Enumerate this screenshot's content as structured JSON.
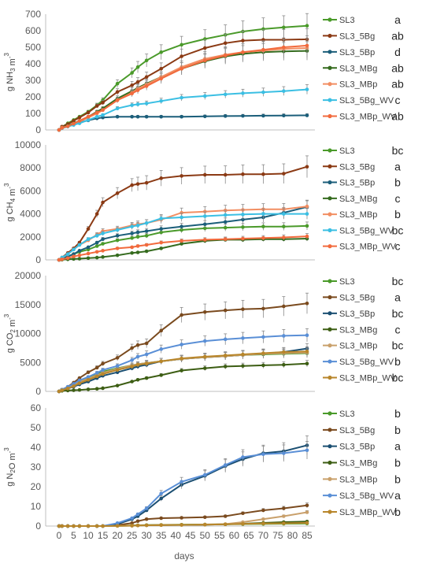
{
  "chart_data": [
    {
      "type": "line",
      "ylabel": "g NH₃ m⁻³",
      "ylim": [
        0,
        700
      ],
      "yticks": [
        0,
        100,
        200,
        300,
        400,
        500,
        600,
        700
      ],
      "x": [
        0,
        1,
        3,
        5,
        7,
        10,
        13,
        15,
        20,
        25,
        27,
        30,
        35,
        42,
        50,
        57,
        63,
        70,
        77,
        85
      ],
      "series": [
        {
          "name": "SL3",
          "sig": "a",
          "color": "#4a9a2a",
          "values": [
            0,
            18,
            40,
            60,
            80,
            110,
            150,
            180,
            280,
            345,
            380,
            420,
            470,
            515,
            550,
            575,
            595,
            610,
            620,
            630
          ]
        },
        {
          "name": "SL3_5Bg",
          "sig": "ab",
          "color": "#8b3a14",
          "values": [
            0,
            20,
            35,
            55,
            75,
            105,
            145,
            165,
            230,
            270,
            290,
            320,
            370,
            445,
            495,
            525,
            540,
            545,
            545,
            548
          ]
        },
        {
          "name": "SL3_5Bp",
          "sig": "d",
          "color": "#1b5e7a",
          "values": [
            0,
            12,
            25,
            35,
            45,
            58,
            70,
            75,
            80,
            80,
            80,
            80,
            80,
            80,
            82,
            84,
            85,
            86,
            87,
            88
          ]
        },
        {
          "name": "SL3_MBg",
          "sig": "ab",
          "color": "#356b1e",
          "values": [
            0,
            15,
            25,
            40,
            55,
            80,
            110,
            130,
            190,
            235,
            255,
            280,
            320,
            370,
            415,
            445,
            460,
            470,
            475,
            478
          ]
        },
        {
          "name": "SL3_MBp",
          "sig": "ab",
          "color": "#f28e62",
          "values": [
            0,
            14,
            22,
            35,
            50,
            75,
            100,
            120,
            180,
            225,
            250,
            275,
            320,
            380,
            430,
            455,
            470,
            480,
            490,
            495
          ]
        },
        {
          "name": "SL3_5Bg_WV",
          "sig": "c",
          "color": "#3bbfe3",
          "values": [
            0,
            10,
            20,
            30,
            40,
            60,
            80,
            90,
            130,
            150,
            155,
            160,
            175,
            195,
            205,
            215,
            222,
            228,
            235,
            245
          ]
        },
        {
          "name": "SL3_MBp_WV",
          "sig": "ab",
          "color": "#f26a3d",
          "values": [
            0,
            12,
            22,
            38,
            55,
            80,
            105,
            120,
            180,
            220,
            240,
            265,
            310,
            370,
            420,
            450,
            470,
            485,
            500,
            510
          ]
        }
      ]
    },
    {
      "type": "line",
      "ylabel": "g CH₄ m⁻³",
      "ylim": [
        0,
        10000
      ],
      "yticks": [
        0,
        2000,
        4000,
        6000,
        8000,
        10000
      ],
      "x": [
        0,
        1,
        3,
        5,
        7,
        10,
        13,
        15,
        20,
        25,
        27,
        30,
        35,
        42,
        50,
        57,
        63,
        70,
        77,
        85
      ],
      "series": [
        {
          "name": "SL3",
          "sig": "bc",
          "color": "#4a9a2a",
          "values": [
            0,
            100,
            300,
            500,
            700,
            900,
            1200,
            1400,
            1700,
            1900,
            2000,
            2100,
            2400,
            2600,
            2750,
            2800,
            2850,
            2900,
            2900,
            2950
          ]
        },
        {
          "name": "SL3_5Bg",
          "sig": "a",
          "color": "#8b3a14",
          "values": [
            0,
            200,
            600,
            1000,
            1500,
            2700,
            4000,
            5000,
            5800,
            6500,
            6600,
            6700,
            7100,
            7300,
            7400,
            7400,
            7450,
            7450,
            7500,
            8100
          ]
        },
        {
          "name": "SL3_5Bp",
          "sig": "b",
          "color": "#1b5e7a",
          "values": [
            0,
            100,
            300,
            500,
            800,
            1100,
            1500,
            1800,
            2100,
            2300,
            2400,
            2500,
            2700,
            2900,
            3100,
            3300,
            3500,
            3700,
            4100,
            4600
          ]
        },
        {
          "name": "SL3_MBg",
          "sig": "c",
          "color": "#356b1e",
          "values": [
            0,
            20,
            50,
            80,
            100,
            150,
            200,
            250,
            400,
            600,
            650,
            750,
            1000,
            1400,
            1650,
            1750,
            1750,
            1800,
            1800,
            1850
          ]
        },
        {
          "name": "SL3_MBp",
          "sig": "b",
          "color": "#f28e62",
          "values": [
            0,
            150,
            500,
            900,
            1300,
            1700,
            2200,
            2500,
            2700,
            3000,
            3100,
            3200,
            3500,
            4100,
            4200,
            4300,
            4350,
            4400,
            4400,
            4650
          ]
        },
        {
          "name": "SL3_5Bg_WV",
          "sig": "bc",
          "color": "#3bbfe3",
          "values": [
            0,
            200,
            500,
            900,
            1300,
            1800,
            2100,
            2300,
            2600,
            2900,
            3000,
            3200,
            3600,
            3700,
            3800,
            3900,
            3950,
            4000,
            4000,
            4000
          ]
        },
        {
          "name": "SL3_MBp_WV",
          "sig": "c",
          "color": "#f26a3d",
          "values": [
            0,
            50,
            150,
            300,
            400,
            550,
            700,
            800,
            1000,
            1100,
            1200,
            1300,
            1500,
            1650,
            1750,
            1800,
            1850,
            1900,
            1950,
            2050
          ]
        }
      ]
    },
    {
      "type": "line",
      "ylabel": "g CO₂ m⁻³",
      "ylim": [
        0,
        20000
      ],
      "yticks": [
        0,
        5000,
        10000,
        15000,
        20000
      ],
      "x": [
        0,
        1,
        3,
        5,
        7,
        10,
        13,
        15,
        20,
        25,
        27,
        30,
        35,
        42,
        50,
        57,
        63,
        70,
        77,
        85
      ],
      "series": [
        {
          "name": "SL3",
          "sig": "bc",
          "color": "#4a9a2a",
          "values": [
            0,
            300,
            700,
            1200,
            1700,
            2300,
            3000,
            3400,
            4000,
            4500,
            4700,
            4900,
            5200,
            5600,
            5900,
            6100,
            6300,
            6400,
            6500,
            6600
          ]
        },
        {
          "name": "SL3_5Bg",
          "sig": "a",
          "color": "#7a4a1e",
          "values": [
            0,
            300,
            800,
            1500,
            2300,
            3300,
            4100,
            4800,
            5800,
            7500,
            8000,
            8300,
            10500,
            13200,
            13700,
            14000,
            14200,
            14300,
            14700,
            15200
          ]
        },
        {
          "name": "SL3_5Bp",
          "sig": "bc",
          "color": "#1b4f72",
          "values": [
            0,
            200,
            500,
            800,
            1200,
            1700,
            2300,
            2700,
            3300,
            4000,
            4300,
            4600,
            5200,
            5600,
            5900,
            6100,
            6300,
            6500,
            6800,
            7400
          ]
        },
        {
          "name": "SL3_MBg",
          "sig": "c",
          "color": "#3d5e14",
          "values": [
            0,
            100,
            150,
            200,
            250,
            350,
            450,
            550,
            1000,
            1700,
            2000,
            2300,
            2800,
            3600,
            4000,
            4300,
            4400,
            4500,
            4600,
            4800
          ]
        },
        {
          "name": "SL3_MBp",
          "sig": "bc",
          "color": "#c9a06b",
          "values": [
            0,
            300,
            700,
            1100,
            1600,
            2200,
            2800,
            3200,
            3900,
            4500,
            4700,
            4900,
            5200,
            5600,
            5900,
            6100,
            6300,
            6500,
            6600,
            6700
          ]
        },
        {
          "name": "SL3_5Bg_WV",
          "sig": "b",
          "color": "#5a8fd6",
          "values": [
            0,
            300,
            800,
            1300,
            1900,
            2500,
            3200,
            3700,
            4400,
            5400,
            6000,
            6400,
            7300,
            8100,
            8700,
            9000,
            9200,
            9400,
            9600,
            9700
          ]
        },
        {
          "name": "SL3_MBp_WV",
          "sig": "bc",
          "color": "#b8862b",
          "values": [
            0,
            200,
            500,
            900,
            1400,
            2000,
            2600,
            3000,
            3700,
            4300,
            4600,
            4800,
            5200,
            5700,
            6000,
            6200,
            6400,
            6600,
            6800,
            6900
          ]
        }
      ]
    },
    {
      "type": "line",
      "ylabel": "g N₂O m⁻³",
      "ylim": [
        0,
        60
      ],
      "yticks": [
        0,
        10,
        20,
        30,
        40,
        50,
        60
      ],
      "xlabel": "days",
      "xticks": [
        0,
        5,
        10,
        15,
        20,
        25,
        30,
        35,
        40,
        45,
        50,
        55,
        60,
        65,
        70,
        75,
        80,
        85
      ],
      "x": [
        0,
        1,
        3,
        5,
        7,
        10,
        13,
        15,
        20,
        25,
        27,
        30,
        35,
        42,
        50,
        57,
        63,
        70,
        77,
        85
      ],
      "series": [
        {
          "name": "SL3",
          "sig": "b",
          "color": "#4a9a2a",
          "values": [
            0,
            0,
            0,
            0,
            0,
            0,
            0,
            0,
            0.2,
            0.3,
            0.4,
            0.5,
            0.6,
            0.7,
            0.8,
            0.9,
            1.0,
            1.1,
            1.2,
            1.3
          ]
        },
        {
          "name": "SL3_5Bg",
          "sig": "b",
          "color": "#7a4a1e",
          "values": [
            0,
            0,
            0,
            0,
            0,
            0,
            0,
            0,
            0.5,
            1.5,
            2.5,
            3.5,
            4.0,
            4.2,
            4.5,
            5.0,
            6.5,
            8.0,
            9.0,
            10.5
          ]
        },
        {
          "name": "SL3_5Bp",
          "sig": "a",
          "color": "#1b4f72",
          "values": [
            0,
            0,
            0,
            0,
            0,
            0,
            0,
            0,
            1.0,
            3.5,
            5.0,
            8.0,
            14.0,
            21.0,
            25.5,
            30.5,
            34.0,
            37.0,
            38.0,
            41.0
          ]
        },
        {
          "name": "SL3_MBg",
          "sig": "b",
          "color": "#3d5e14",
          "values": [
            0,
            0,
            0,
            0,
            0,
            0,
            0,
            0,
            0.1,
            0.2,
            0.3,
            0.4,
            0.5,
            0.6,
            0.7,
            0.9,
            1.2,
            1.6,
            2.0,
            2.3
          ]
        },
        {
          "name": "SL3_MBp",
          "sig": "b",
          "color": "#c9a06b",
          "values": [
            0,
            0,
            0,
            0,
            0,
            0,
            0,
            0,
            0.1,
            0.2,
            0.3,
            0.4,
            0.5,
            0.6,
            0.8,
            1.0,
            2.0,
            3.5,
            5.0,
            7.0
          ]
        },
        {
          "name": "SL3_5Bg_WV",
          "sig": "a",
          "color": "#5a8fd6",
          "values": [
            0,
            0,
            0,
            0,
            0,
            0,
            0,
            0,
            1.5,
            4.0,
            6.0,
            9.0,
            16.5,
            22.5,
            26.0,
            31.0,
            35.0,
            36.5,
            37.0,
            38.5
          ]
        },
        {
          "name": "SL3_MBp_WV",
          "sig": "b",
          "color": "#b8862b",
          "values": [
            0,
            0,
            0,
            0,
            0,
            0,
            0,
            0,
            0.1,
            0.2,
            0.3,
            0.4,
            0.5,
            0.6,
            0.7,
            0.9,
            1.1,
            1.3,
            1.4,
            1.6
          ]
        }
      ]
    }
  ]
}
